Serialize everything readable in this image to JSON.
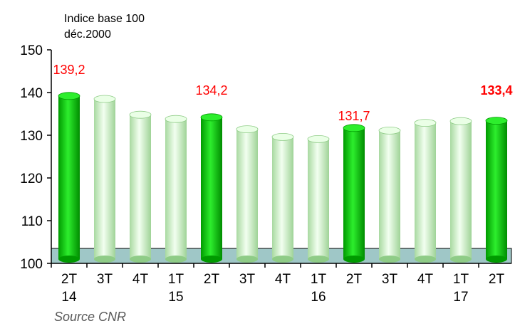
{
  "chart_data": {
    "type": "bar",
    "y_unit_label": [
      "Indice base 100",
      "déc.2000"
    ],
    "categories": [
      [
        "2T",
        "14"
      ],
      [
        "3T",
        ""
      ],
      [
        "4T",
        ""
      ],
      [
        "1T",
        "15"
      ],
      [
        "2T",
        ""
      ],
      [
        "3T",
        ""
      ],
      [
        "4T",
        ""
      ],
      [
        "1T",
        "16"
      ],
      [
        "2T",
        ""
      ],
      [
        "3T",
        ""
      ],
      [
        "4T",
        ""
      ],
      [
        "1T",
        "17"
      ],
      [
        "2T",
        ""
      ]
    ],
    "values": [
      139.2,
      138.5,
      134.8,
      133.8,
      134.2,
      131.4,
      129.6,
      129.1,
      131.7,
      131.1,
      132.9,
      133.3,
      133.4
    ],
    "highlighted": [
      true,
      false,
      false,
      false,
      true,
      false,
      false,
      false,
      true,
      false,
      false,
      false,
      true
    ],
    "data_labels": [
      {
        "index": 0,
        "text": "139,2",
        "bold": false
      },
      {
        "index": 4,
        "text": "134,2",
        "bold": false
      },
      {
        "index": 8,
        "text": "131,7",
        "bold": false
      },
      {
        "index": 12,
        "text": "133,4",
        "bold": true
      }
    ],
    "yticks": [
      100,
      110,
      120,
      130,
      140,
      150
    ],
    "ylim": [
      100,
      150
    ],
    "source": "Source CNR",
    "colors": {
      "highlight_top": "#2dee2d",
      "highlight_mid": "#00c800",
      "highlight_dark": "#009a00",
      "normal_top": "#eaffe6",
      "normal_mid": "#c6efbe",
      "normal_dark": "#8fcc87",
      "floor": "#9fc7c7",
      "label": "#ff0000"
    }
  }
}
